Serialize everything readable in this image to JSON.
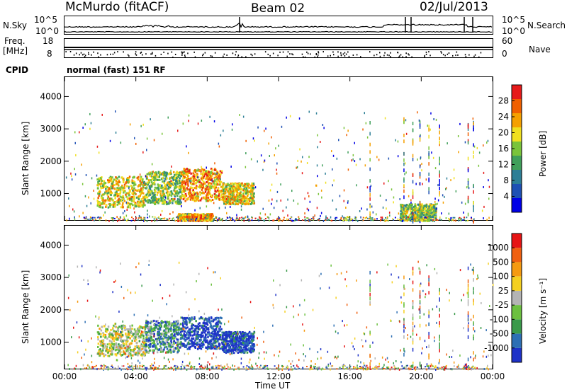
{
  "header": {
    "station": "McMurdo (fitACF)",
    "beam": "Beam 02",
    "date": "02/Jul/2013"
  },
  "noise_panel": {
    "left_label": "N.Sky",
    "left_ticks": [
      "10^5",
      "10^0"
    ],
    "right_label": "N.Search",
    "right_ticks": [
      "10^5",
      "10^0"
    ]
  },
  "freq_panel": {
    "left_label_line1": "Freq.",
    "left_label_line2": "[MHz]",
    "left_ticks": [
      "18",
      "8"
    ],
    "right_label": "Nave",
    "right_ticks": [
      "60",
      "0"
    ],
    "cpid_label": "CPID",
    "cpid_text": "normal (fast) 151 RF"
  },
  "colors": {
    "power_scale": [
      "#0000e6",
      "#1e50b4",
      "#2d7f96",
      "#3f9f5a",
      "#7ac43a",
      "#f0e020",
      "#f5a000",
      "#f06000",
      "#e61a1a"
    ],
    "velocity_scale": [
      "#1e32c8",
      "#2d6fb4",
      "#3a9a4a",
      "#6cc040",
      "#b4b4b4",
      "#f5d020",
      "#f59a10",
      "#f06010",
      "#e61414"
    ]
  },
  "chart_data": [
    {
      "type": "heatmap",
      "title": "Power",
      "xlabel": "Time UT",
      "ylabel": "Slant Range [km]",
      "x_ticks": [
        "00:00",
        "04:00",
        "08:00",
        "12:00",
        "16:00",
        "20:00",
        "00:00"
      ],
      "y_ticks": [
        "1000",
        "2000",
        "3000",
        "4000"
      ],
      "xlim": [
        0,
        24
      ],
      "ylim": [
        180,
        4600
      ],
      "colorbar_label": "Power [dB]",
      "colorbar_ticks": [
        "4",
        "8",
        "12",
        "16",
        "20",
        "24",
        "28"
      ],
      "colorbar_range": [
        0,
        30
      ],
      "features": [
        {
          "t0": 1.8,
          "t1": 4.5,
          "r0": 600,
          "r1": 1550,
          "peak_level": 7
        },
        {
          "t0": 4.5,
          "t1": 6.5,
          "r0": 700,
          "r1": 1700,
          "peak_level": 6
        },
        {
          "t0": 6.5,
          "t1": 8.8,
          "r0": 800,
          "r1": 1800,
          "peak_level": 8
        },
        {
          "t0": 8.8,
          "t1": 10.6,
          "r0": 700,
          "r1": 1350,
          "peak_level": 7
        },
        {
          "t0": 6.3,
          "t1": 8.3,
          "r0": 180,
          "r1": 400,
          "peak_level": 8
        },
        {
          "t0": 18.8,
          "t1": 20.8,
          "r0": 180,
          "r1": 700,
          "peak_level": 6
        }
      ]
    },
    {
      "type": "heatmap",
      "title": "Velocity",
      "xlabel": "Time UT",
      "ylabel": "Slant Range [km]",
      "x_ticks": [
        "00:00",
        "04:00",
        "08:00",
        "12:00",
        "16:00",
        "20:00",
        "00:00"
      ],
      "y_ticks": [
        "1000",
        "2000",
        "3000",
        "4000"
      ],
      "xlim": [
        0,
        24
      ],
      "ylim": [
        180,
        4600
      ],
      "colorbar_label": "Velocity [m s⁻¹]",
      "colorbar_ticks": [
        "1000",
        "500",
        "100",
        "25",
        "-25",
        "-100",
        "-500",
        "-1000"
      ],
      "features": [
        {
          "t0": 1.8,
          "t1": 4.5,
          "r0": 600,
          "r1": 1550,
          "peak_level": 6
        },
        {
          "t0": 4.5,
          "t1": 6.5,
          "r0": 700,
          "r1": 1700,
          "peak_level": 4
        },
        {
          "t0": 6.5,
          "t1": 8.8,
          "r0": 800,
          "r1": 1800,
          "peak_level": 2
        },
        {
          "t0": 8.8,
          "t1": 10.6,
          "r0": 700,
          "r1": 1350,
          "peak_level": 2
        }
      ]
    }
  ]
}
